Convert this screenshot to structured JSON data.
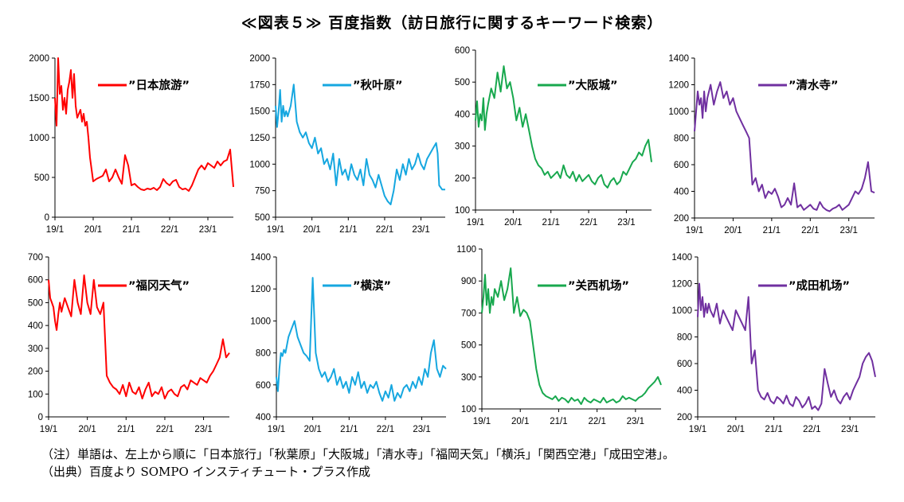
{
  "page": {
    "title": "≪図表５≫ 百度指数（訪日旅行に関するキーワード検索）",
    "note": "（注）単語は、左上から順に「日本旅行」「秋葉原」「大阪城」「清水寺」「福岡天気」「横浜」「関西空港」「成田空港」。",
    "source": "（出典）百度より SOMPO インスティチュート・プラス作成"
  },
  "colors": {
    "red": "#ff0000",
    "cyan": "#16a7e0",
    "green": "#18a84e",
    "purple": "#7030a0"
  },
  "chart_data": [
    {
      "type": "line",
      "legend": "”日本旅游”",
      "color": "#ff0000",
      "x_ticks": [
        "19/1",
        "20/1",
        "21/1",
        "22/1",
        "23/1"
      ],
      "y_ticks": [
        0,
        500,
        1000,
        1500,
        2000
      ],
      "ylim": [
        0,
        2000
      ],
      "x": [
        0,
        0.5,
        1,
        1.5,
        2,
        2.5,
        3,
        3.5,
        4,
        4.5,
        5,
        5.5,
        6,
        6.5,
        7,
        7.5,
        8,
        8.5,
        9,
        9.5,
        10,
        10.5,
        11,
        11.5,
        12,
        13,
        14,
        15,
        16,
        17,
        18,
        19,
        20,
        21,
        22,
        23,
        24,
        25,
        26,
        27,
        28,
        29,
        30,
        31,
        32,
        33,
        34,
        35,
        36,
        37,
        38,
        39,
        40,
        41,
        42,
        43,
        44,
        45,
        46,
        47,
        48,
        49,
        50,
        51,
        52,
        53,
        54,
        55,
        56
      ],
      "y": [
        1500,
        1150,
        2000,
        1550,
        1650,
        1350,
        1500,
        1300,
        1600,
        1700,
        1850,
        1500,
        1800,
        1400,
        1250,
        1300,
        1350,
        1200,
        1300,
        1150,
        1200,
        1000,
        750,
        600,
        450,
        480,
        500,
        520,
        600,
        450,
        500,
        600,
        500,
        420,
        780,
        650,
        400,
        420,
        380,
        350,
        340,
        360,
        350,
        370,
        340,
        380,
        480,
        430,
        400,
        450,
        470,
        380,
        350,
        360,
        330,
        400,
        500,
        600,
        650,
        600,
        680,
        650,
        620,
        700,
        650,
        700,
        720,
        850,
        380
      ]
    },
    {
      "type": "line",
      "legend": "”秋叶原”",
      "color": "#16a7e0",
      "x_ticks": [
        "19/1",
        "20/1",
        "21/1",
        "22/1",
        "23/1"
      ],
      "y_ticks": [
        500,
        750,
        1000,
        1250,
        1500,
        1750,
        2000
      ],
      "ylim": [
        500,
        2000
      ],
      "x": [
        0,
        0.5,
        1,
        1.5,
        2,
        2.5,
        3,
        3.5,
        4,
        5,
        6,
        7,
        8,
        9,
        10,
        11,
        12,
        13,
        14,
        15,
        16,
        17,
        18,
        19,
        20,
        21,
        22,
        23,
        24,
        25,
        26,
        27,
        28,
        29,
        30,
        31,
        32,
        33,
        34,
        35,
        36,
        37,
        38,
        39,
        40,
        41,
        42,
        43,
        44,
        45,
        46,
        47,
        48,
        49,
        50,
        51,
        52,
        53,
        53.5,
        54,
        55,
        56
      ],
      "y": [
        1550,
        1350,
        1500,
        1700,
        1400,
        1550,
        1450,
        1500,
        1450,
        1550,
        1750,
        1400,
        1300,
        1250,
        1300,
        1200,
        1150,
        1250,
        1100,
        1150,
        1000,
        1050,
        950,
        1100,
        800,
        1050,
        900,
        950,
        850,
        1000,
        900,
        850,
        950,
        800,
        1050,
        900,
        850,
        780,
        900,
        800,
        700,
        650,
        620,
        750,
        950,
        850,
        1000,
        900,
        1050,
        950,
        1000,
        1100,
        1000,
        950,
        1050,
        1100,
        1150,
        1200,
        1100,
        800,
        760,
        760
      ]
    },
    {
      "type": "line",
      "legend": "”大阪城”",
      "color": "#18a84e",
      "x_ticks": [
        "19/1",
        "20/1",
        "21/1",
        "22/1",
        "23/1"
      ],
      "y_ticks": [
        100,
        200,
        300,
        400,
        500,
        600
      ],
      "ylim": [
        100,
        600
      ],
      "x": [
        0,
        0.5,
        1,
        1.5,
        2,
        2.5,
        3,
        3.5,
        4,
        5,
        6,
        7,
        8,
        9,
        10,
        11,
        12,
        13,
        14,
        15,
        16,
        17,
        18,
        19,
        20,
        21,
        22,
        23,
        24,
        25,
        26,
        27,
        28,
        29,
        30,
        31,
        32,
        33,
        34,
        35,
        36,
        37,
        38,
        39,
        40,
        41,
        42,
        43,
        44,
        45,
        46,
        47,
        48,
        49,
        50,
        51,
        52,
        53,
        54,
        55,
        56
      ],
      "y": [
        380,
        440,
        360,
        400,
        380,
        450,
        350,
        400,
        430,
        480,
        450,
        530,
        470,
        550,
        480,
        500,
        450,
        380,
        420,
        360,
        400,
        350,
        300,
        260,
        240,
        230,
        210,
        220,
        200,
        210,
        220,
        200,
        240,
        210,
        200,
        220,
        190,
        210,
        190,
        200,
        210,
        190,
        180,
        200,
        210,
        180,
        170,
        190,
        200,
        180,
        190,
        220,
        210,
        230,
        250,
        260,
        280,
        270,
        300,
        320,
        250
      ]
    },
    {
      "type": "line",
      "legend": "”清水寺”",
      "color": "#7030a0",
      "x_ticks": [
        "19/1",
        "20/1",
        "21/1",
        "22/1",
        "23/1"
      ],
      "y_ticks": [
        200,
        400,
        600,
        800,
        1000,
        1200,
        1400
      ],
      "ylim": [
        200,
        1400
      ],
      "x": [
        0,
        0.5,
        1,
        1.5,
        2,
        2.5,
        3,
        3.5,
        4,
        5,
        6,
        7,
        8,
        9,
        10,
        11,
        12,
        13,
        14,
        15,
        16,
        17,
        18,
        19,
        20,
        21,
        22,
        23,
        24,
        25,
        26,
        27,
        28,
        29,
        30,
        31,
        32,
        33,
        34,
        35,
        36,
        37,
        38,
        39,
        40,
        41,
        42,
        43,
        44,
        45,
        46,
        47,
        48,
        49,
        50,
        51,
        52,
        53,
        54,
        55,
        56
      ],
      "y": [
        850,
        1000,
        1150,
        1050,
        1100,
        950,
        1150,
        1000,
        1100,
        1200,
        1050,
        1150,
        1220,
        1100,
        1150,
        1050,
        1100,
        1000,
        950,
        900,
        850,
        800,
        450,
        500,
        400,
        450,
        350,
        400,
        380,
        420,
        360,
        280,
        300,
        350,
        300,
        460,
        280,
        300,
        260,
        280,
        300,
        270,
        260,
        320,
        280,
        260,
        250,
        270,
        280,
        300,
        260,
        280,
        300,
        350,
        400,
        380,
        420,
        500,
        620,
        400,
        390
      ]
    },
    {
      "type": "line",
      "legend": "”福冈天气”",
      "color": "#ff0000",
      "x_ticks": [
        "19/1",
        "20/1",
        "21/1",
        "22/1",
        "23/1"
      ],
      "y_ticks": [
        0,
        100,
        200,
        300,
        400,
        500,
        600,
        700
      ],
      "ylim": [
        0,
        700
      ],
      "x": [
        0,
        0.5,
        1,
        1.5,
        2,
        2.5,
        3,
        3.5,
        4,
        5,
        6,
        7,
        8,
        9,
        10,
        11,
        12,
        13,
        14,
        15,
        16,
        17,
        18,
        19,
        20,
        21,
        22,
        23,
        24,
        25,
        26,
        27,
        28,
        29,
        30,
        31,
        32,
        33,
        34,
        35,
        36,
        37,
        38,
        39,
        40,
        41,
        42,
        43,
        44,
        45,
        46,
        47,
        48,
        49,
        50,
        51,
        52,
        53,
        54,
        55,
        56
      ],
      "y": [
        600,
        520,
        500,
        480,
        420,
        380,
        450,
        500,
        460,
        520,
        480,
        440,
        600,
        500,
        450,
        620,
        500,
        450,
        600,
        480,
        450,
        500,
        180,
        150,
        130,
        120,
        100,
        140,
        90,
        150,
        110,
        100,
        130,
        80,
        120,
        150,
        90,
        110,
        100,
        130,
        80,
        110,
        120,
        100,
        90,
        130,
        140,
        120,
        160,
        150,
        140,
        170,
        160,
        150,
        180,
        200,
        230,
        260,
        340,
        260,
        280
      ]
    },
    {
      "type": "line",
      "legend": "”横滨”",
      "color": "#16a7e0",
      "x_ticks": [
        "19/1",
        "20/1",
        "21/1",
        "22/1",
        "23/1"
      ],
      "y_ticks": [
        400,
        600,
        800,
        1000,
        1200,
        1400
      ],
      "ylim": [
        400,
        1400
      ],
      "x": [
        0,
        0.5,
        1,
        1.5,
        2,
        2.5,
        3,
        3.5,
        4,
        5,
        6,
        7,
        8,
        9,
        10,
        11,
        12,
        13,
        14,
        15,
        16,
        17,
        18,
        19,
        20,
        21,
        22,
        23,
        24,
        25,
        26,
        27,
        28,
        29,
        30,
        31,
        32,
        33,
        34,
        35,
        36,
        37,
        38,
        39,
        40,
        41,
        42,
        43,
        44,
        45,
        46,
        47,
        48,
        49,
        50,
        51,
        52,
        53,
        54,
        55,
        56
      ],
      "y": [
        650,
        560,
        700,
        800,
        780,
        820,
        800,
        850,
        900,
        950,
        1000,
        900,
        850,
        800,
        780,
        750,
        1270,
        800,
        700,
        650,
        680,
        620,
        650,
        700,
        600,
        650,
        580,
        620,
        550,
        650,
        600,
        680,
        580,
        620,
        550,
        600,
        580,
        620,
        550,
        500,
        560,
        520,
        600,
        500,
        550,
        520,
        580,
        600,
        560,
        620,
        580,
        650,
        600,
        700,
        650,
        800,
        880,
        700,
        650,
        720,
        700
      ]
    },
    {
      "type": "line",
      "legend": "”关西机场”",
      "color": "#18a84e",
      "x_ticks": [
        "19/1",
        "20/1",
        "21/1",
        "22/1",
        "23/1"
      ],
      "y_ticks": [
        100,
        300,
        500,
        700,
        900,
        1100
      ],
      "ylim": [
        100,
        1100
      ],
      "x": [
        0,
        0.5,
        1,
        1.5,
        2,
        2.5,
        3,
        3.5,
        4,
        5,
        6,
        7,
        8,
        9,
        10,
        11,
        12,
        13,
        14,
        15,
        16,
        17,
        18,
        19,
        20,
        21,
        22,
        23,
        24,
        25,
        26,
        27,
        28,
        29,
        30,
        31,
        32,
        33,
        34,
        35,
        36,
        37,
        38,
        39,
        40,
        41,
        42,
        43,
        44,
        45,
        46,
        47,
        48,
        49,
        50,
        51,
        52,
        53,
        54,
        55,
        56
      ],
      "y": [
        700,
        800,
        940,
        750,
        850,
        700,
        800,
        750,
        850,
        800,
        900,
        780,
        850,
        980,
        700,
        800,
        680,
        720,
        700,
        650,
        500,
        350,
        250,
        200,
        180,
        170,
        160,
        180,
        150,
        170,
        160,
        140,
        170,
        150,
        160,
        130,
        170,
        150,
        140,
        160,
        150,
        140,
        170,
        140,
        150,
        160,
        140,
        150,
        180,
        160,
        170,
        160,
        150,
        170,
        180,
        200,
        230,
        250,
        270,
        300,
        250
      ]
    },
    {
      "type": "line",
      "legend": "”成田机场”",
      "color": "#7030a0",
      "x_ticks": [
        "19/1",
        "20/1",
        "21/1",
        "22/1",
        "23/1"
      ],
      "y_ticks": [
        200,
        400,
        600,
        800,
        1000,
        1200,
        1400
      ],
      "ylim": [
        200,
        1400
      ],
      "x": [
        0,
        0.5,
        1,
        1.5,
        2,
        2.5,
        3,
        3.5,
        4,
        5,
        6,
        7,
        8,
        9,
        10,
        11,
        12,
        13,
        14,
        15,
        16,
        17,
        18,
        19,
        20,
        21,
        22,
        23,
        24,
        25,
        26,
        27,
        28,
        29,
        30,
        31,
        32,
        33,
        34,
        35,
        36,
        37,
        38,
        39,
        40,
        41,
        42,
        43,
        44,
        45,
        46,
        47,
        48,
        49,
        50,
        51,
        52,
        53,
        54,
        55,
        56
      ],
      "y": [
        950,
        1200,
        1000,
        1100,
        950,
        1050,
        980,
        1050,
        1000,
        950,
        1050,
        900,
        1000,
        950,
        900,
        850,
        1000,
        950,
        900,
        850,
        1100,
        600,
        700,
        400,
        350,
        330,
        380,
        320,
        300,
        350,
        330,
        300,
        360,
        300,
        280,
        350,
        320,
        270,
        300,
        350,
        260,
        280,
        250,
        300,
        560,
        450,
        350,
        400,
        330,
        300,
        350,
        380,
        330,
        400,
        450,
        500,
        600,
        650,
        680,
        620,
        500
      ]
    }
  ]
}
